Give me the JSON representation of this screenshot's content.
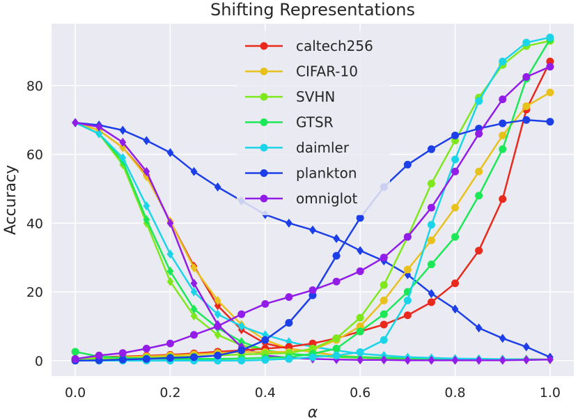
{
  "chart_data": {
    "type": "line",
    "title": "Shifting Representations",
    "xlabel": "α",
    "ylabel": "Accuracy",
    "xlim": [
      -0.05,
      1.05
    ],
    "ylim": [
      -4.5,
      98
    ],
    "grid": true,
    "legend_position": "top-center",
    "x": [
      0.0,
      0.05,
      0.1,
      0.15,
      0.2,
      0.25,
      0.3,
      0.35,
      0.4,
      0.45,
      0.5,
      0.55,
      0.6,
      0.65,
      0.7,
      0.75,
      0.8,
      0.85,
      0.9,
      0.95,
      1.0
    ],
    "x_ticks": [
      0.0,
      0.2,
      0.4,
      0.6,
      0.8,
      1.0
    ],
    "x_tick_labels": [
      "0.0",
      "0.2",
      "0.4",
      "0.6",
      "0.8",
      "1.0"
    ],
    "y_ticks": [
      0,
      20,
      40,
      60,
      80
    ],
    "y_tick_labels": [
      "0",
      "20",
      "40",
      "60",
      "80"
    ],
    "series": [
      {
        "name": "caltech256",
        "color": "#e8291c",
        "marker": "circle",
        "values": [
          0.5,
          1.0,
          1.2,
          1.4,
          1.7,
          2.1,
          2.6,
          3.0,
          3.5,
          4.0,
          5.0,
          6.5,
          8.5,
          10.5,
          13.2,
          17.0,
          22.5,
          32.0,
          47.0,
          73.0,
          87.0
        ],
        "values_b": [
          69.2,
          67.0,
          62.0,
          54.0,
          40.5,
          27.5,
          16.0,
          9.0,
          5.0,
          3.5,
          2.5,
          1.5,
          1.0,
          0.8,
          0.6,
          0.5,
          0.5,
          0.4,
          0.4,
          0.4,
          0.3
        ]
      },
      {
        "name": "CIFAR-10",
        "color": "#e8c11c",
        "marker": "circle",
        "values": [
          0.5,
          0.8,
          1.0,
          1.2,
          1.5,
          1.8,
          2.2,
          2.5,
          2.5,
          2.5,
          3.2,
          6.0,
          10.0,
          17.5,
          26.5,
          35.0,
          44.5,
          55.0,
          65.5,
          74.0,
          78.0
        ],
        "values_b": [
          69.2,
          67.0,
          62.0,
          53.5,
          40.5,
          27.0,
          17.5,
          10.5,
          6.0,
          3.5,
          2.5,
          1.5,
          1.0,
          0.8,
          0.6,
          0.5,
          0.5,
          0.4,
          0.4,
          0.4,
          0.3
        ]
      },
      {
        "name": "SVHN",
        "color": "#7ee81c",
        "marker": "circle",
        "values": [
          0.5,
          0.6,
          0.7,
          0.8,
          1.0,
          1.2,
          1.5,
          1.8,
          2.0,
          2.2,
          3.5,
          6.5,
          12.5,
          22.0,
          36.0,
          51.5,
          64.0,
          76.5,
          86.0,
          91.5,
          93.0
        ],
        "values_b": [
          69.2,
          66.0,
          57.0,
          40.0,
          23.0,
          13.0,
          7.5,
          4.5,
          3.0,
          2.0,
          1.5,
          1.0,
          0.8,
          0.6,
          0.5,
          0.4,
          0.4,
          0.3,
          0.3,
          0.3,
          0.3
        ]
      },
      {
        "name": "GTSR",
        "color": "#1ce857",
        "marker": "circle",
        "values": [
          2.6,
          1.2,
          0.8,
          0.6,
          0.5,
          0.5,
          0.5,
          0.6,
          0.8,
          1.0,
          2.0,
          3.5,
          8.5,
          13.5,
          20.0,
          28.0,
          36.0,
          48.0,
          61.5,
          82.0,
          93.5
        ],
        "values_b": [
          69.2,
          66.0,
          58.0,
          41.0,
          26.0,
          15.0,
          9.5,
          5.5,
          3.0,
          2.0,
          1.5,
          1.2,
          1.0,
          0.8,
          0.7,
          0.6,
          0.5,
          0.5,
          0.4,
          0.4,
          0.3
        ]
      },
      {
        "name": "daimler",
        "color": "#1cd4e8",
        "marker": "circle",
        "values": [
          0.0,
          0.0,
          0.0,
          0.0,
          0.0,
          0.0,
          0.0,
          0.0,
          0.2,
          0.5,
          1.0,
          1.5,
          2.5,
          6.0,
          17.5,
          39.5,
          58.5,
          75.5,
          87.0,
          92.5,
          94.0
        ],
        "values_b": [
          69.2,
          66.0,
          59.0,
          45.0,
          31.0,
          20.0,
          13.5,
          10.0,
          7.5,
          5.5,
          4.0,
          3.0,
          2.0,
          1.5,
          1.0,
          0.8,
          0.6,
          0.5,
          0.4,
          0.3,
          0.3
        ]
      },
      {
        "name": "plankton",
        "color": "#1c3fe8",
        "marker": "circle",
        "values": [
          0.0,
          0.1,
          0.3,
          0.5,
          0.8,
          1.0,
          1.5,
          3.0,
          6.0,
          11.0,
          19.0,
          30.5,
          41.5,
          50.5,
          57.0,
          61.5,
          65.5,
          67.5,
          69.0,
          70.0,
          69.5
        ],
        "values_b": [
          69.2,
          68.5,
          67.0,
          64.0,
          60.5,
          55.0,
          50.5,
          46.5,
          42.5,
          40.0,
          38.0,
          35.5,
          32.0,
          29.0,
          25.0,
          19.5,
          15.0,
          9.5,
          6.5,
          4.0,
          1.0
        ]
      },
      {
        "name": "omniglot",
        "color": "#921ce8",
        "marker": "circle",
        "values": [
          0.5,
          1.5,
          2.2,
          3.5,
          5.0,
          7.5,
          10.0,
          13.5,
          16.5,
          18.5,
          20.5,
          23.0,
          26.0,
          30.0,
          36.0,
          44.5,
          55.0,
          66.0,
          76.0,
          82.5,
          85.5
        ],
        "values_b": [
          69.2,
          68.0,
          63.5,
          55.0,
          40.0,
          22.5,
          10.5,
          4.0,
          1.5,
          0.8,
          0.5,
          0.3,
          0.2,
          0.2,
          0.1,
          0.1,
          0.1,
          0.1,
          0.1,
          0.2,
          0.3
        ]
      }
    ]
  }
}
